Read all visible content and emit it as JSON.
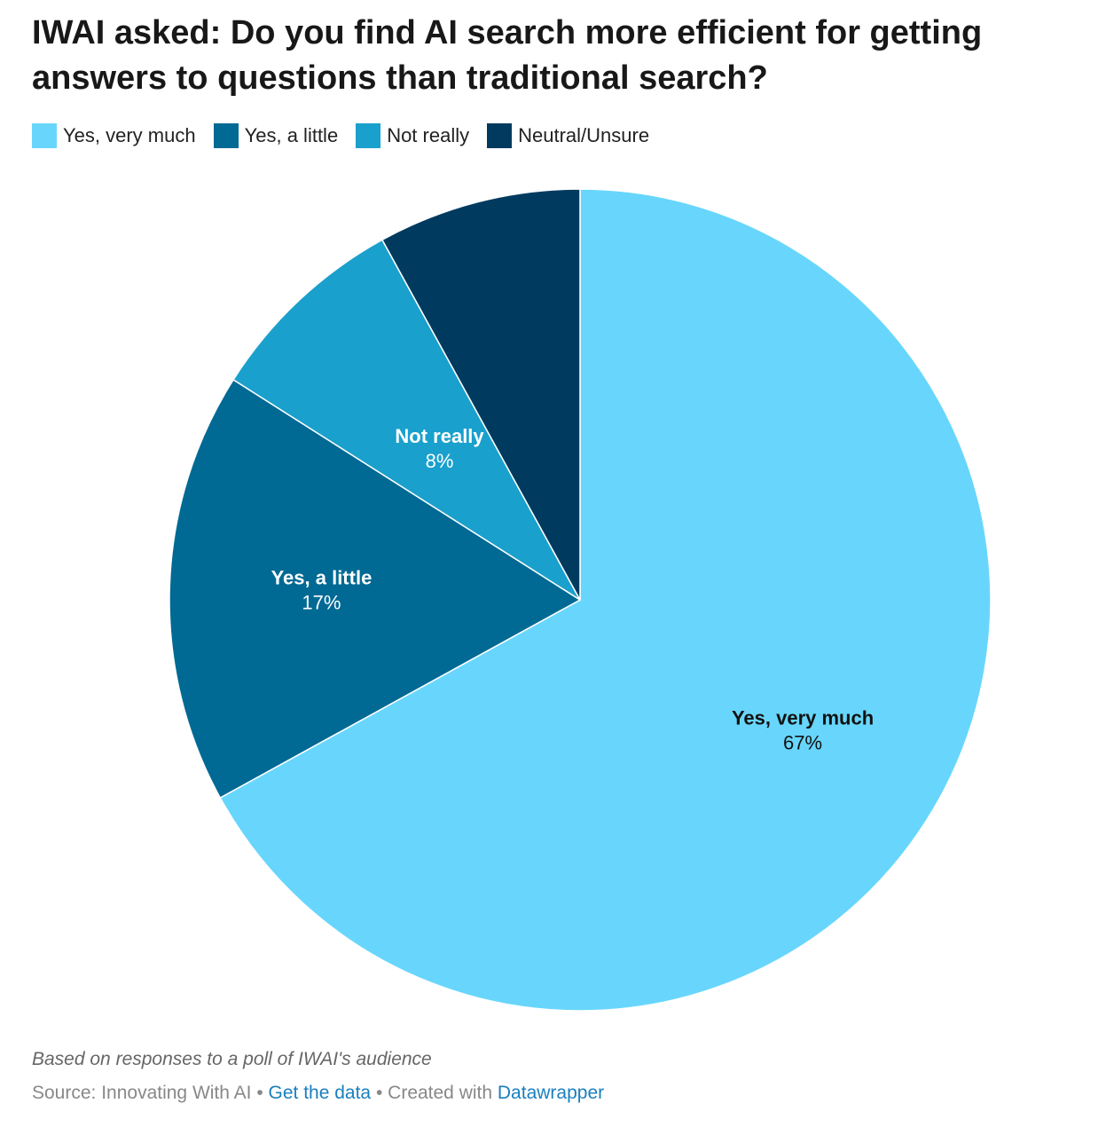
{
  "chart_data": {
    "type": "pie",
    "title": "IWAI asked: Do you find AI search more efficient for getting answers to questions than traditional search?",
    "categories": [
      "Yes, very much",
      "Yes, a little",
      "Not really",
      "Neutral/Unsure"
    ],
    "values": [
      67,
      17,
      8,
      8
    ],
    "value_labels": [
      "67%",
      "17%",
      "8%",
      null
    ],
    "colors": [
      "#68d6fc",
      "#006994",
      "#1aa0cc",
      "#003b5f"
    ],
    "notes": "Based on responses to a poll of IWAI's audience",
    "source": "Source: Innovating With AI",
    "separator": "•",
    "get_data": "Get the data",
    "credit_prefix": "Created with",
    "credit": "Datawrapper"
  }
}
